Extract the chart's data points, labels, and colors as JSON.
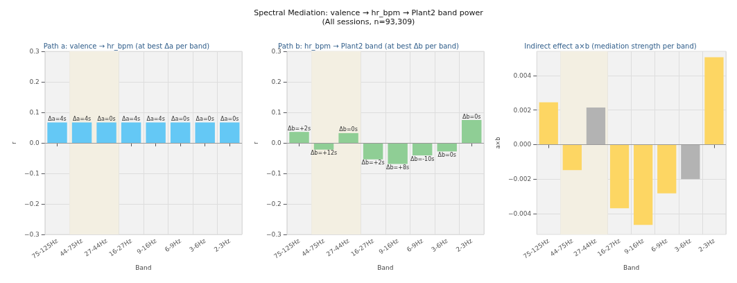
{
  "chart_data": [
    {
      "type": "other",
      "title": "Spectral Mediation: valence → hr_bpm → Plant2 band power",
      "subtitle": "(All sessions, n=93,309)"
    },
    {
      "type": "bar",
      "title": "Path a: valence → hr_bpm (at best Δa per band)",
      "xlabel": "Band",
      "ylabel": "r",
      "categories": [
        "75-125Hz",
        "44-75Hz",
        "27-44Hz",
        "16-27Hz",
        "9-16Hz",
        "6-9Hz",
        "3-6Hz",
        "2-3Hz"
      ],
      "values": [
        0.067,
        0.067,
        0.067,
        0.067,
        0.067,
        0.067,
        0.067,
        0.067
      ],
      "annotations": [
        {
          "text": "Δa=4s",
          "x": "75-125Hz",
          "y": 0.067
        },
        {
          "text": "Δa=4s",
          "x": "44-75Hz",
          "y": 0.067
        },
        {
          "text": "Δa=0s",
          "x": "27-44Hz",
          "y": 0.067
        },
        {
          "text": "Δa=4s",
          "x": "16-27Hz",
          "y": 0.067
        },
        {
          "text": "Δa=4s",
          "x": "9-16Hz",
          "y": 0.067
        },
        {
          "text": "Δa=0s",
          "x": "6-9Hz",
          "y": 0.067
        },
        {
          "text": "Δa=0s",
          "x": "3-6Hz",
          "y": 0.067
        },
        {
          "text": "Δa=0s",
          "x": "2-3Hz",
          "y": 0.067
        }
      ],
      "color": "#64c8f5",
      "ylim": [
        -0.3,
        0.3
      ],
      "yticks": [
        {
          "value": -0.3,
          "label": "−0.3"
        },
        {
          "value": -0.2,
          "label": "−0.2"
        },
        {
          "value": -0.1,
          "label": "−0.1"
        },
        {
          "value": 0,
          "label": "0.0"
        },
        0.1,
        0.2,
        0.3
      ],
      "bands": [
        {
          "axis": "x",
          "from": "44-75Hz",
          "to": "27-44Hz",
          "color": "#f3efe2"
        }
      ],
      "ref_lines": [
        {
          "axis": "y",
          "value": 0,
          "color": "#999999"
        }
      ],
      "grid": true
    },
    {
      "type": "bar",
      "title": "Path b: hr_bpm → Plant2 band (at best Δb per band)",
      "xlabel": "Band",
      "ylabel": "r",
      "categories": [
        "75-125Hz",
        "44-75Hz",
        "27-44Hz",
        "16-27Hz",
        "9-16Hz",
        "6-9Hz",
        "3-6Hz",
        "2-3Hz"
      ],
      "values": [
        0.036,
        -0.022,
        0.032,
        -0.054,
        -0.069,
        -0.041,
        -0.028,
        0.075
      ],
      "annotations": [
        {
          "text": "Δb=+2s",
          "x": "75-125Hz",
          "y": 0.036
        },
        {
          "text": "Δb=+12s",
          "x": "44-75Hz",
          "y": -0.022
        },
        {
          "text": "Δb=0s",
          "x": "27-44Hz",
          "y": 0.032
        },
        {
          "text": "Δb=+2s",
          "x": "16-27Hz",
          "y": -0.054
        },
        {
          "text": "Δb=+8s",
          "x": "9-16Hz",
          "y": -0.069
        },
        {
          "text": "Δb=-10s",
          "x": "6-9Hz",
          "y": -0.041
        },
        {
          "text": "Δb=0s",
          "x": "3-6Hz",
          "y": -0.028
        },
        {
          "text": "Δb=0s",
          "x": "2-3Hz",
          "y": 0.075
        }
      ],
      "color": "#8fce95",
      "ylim": [
        -0.3,
        0.3
      ],
      "yticks": [
        {
          "value": -0.3,
          "label": "−0.3"
        },
        {
          "value": -0.2,
          "label": "−0.2"
        },
        {
          "value": -0.1,
          "label": "−0.1"
        },
        {
          "value": 0,
          "label": "0.0"
        },
        0.1,
        0.2,
        0.3
      ],
      "bands": [
        {
          "axis": "x",
          "from": "44-75Hz",
          "to": "27-44Hz",
          "color": "#f3efe2"
        }
      ],
      "ref_lines": [
        {
          "axis": "y",
          "value": 0,
          "color": "#999999"
        }
      ],
      "grid": true
    },
    {
      "type": "bar",
      "title": "Indirect effect a×b (mediation strength per band)",
      "xlabel": "Band",
      "ylabel": "a×b",
      "categories": [
        "75-125Hz",
        "44-75Hz",
        "27-44Hz",
        "16-27Hz",
        "9-16Hz",
        "6-9Hz",
        "3-6Hz",
        "2-3Hz"
      ],
      "values": [
        0.00245,
        -0.00148,
        0.00215,
        -0.00368,
        -0.00465,
        -0.00282,
        -0.002,
        0.00506
      ],
      "colors": [
        "#fdd663",
        "#fdd663",
        "#b3b3b3",
        "#fdd663",
        "#fdd663",
        "#fdd663",
        "#b3b3b3",
        "#fdd663"
      ],
      "ylim": [
        -0.0052,
        0.0054
      ],
      "yticks": [
        {
          "value": -0.004,
          "label": "−0.004"
        },
        {
          "value": -0.002,
          "label": "−0.002"
        },
        {
          "value": 0,
          "label": "0.000"
        },
        0.002,
        0.004
      ],
      "bands": [
        {
          "axis": "x",
          "from": "44-75Hz",
          "to": "27-44Hz",
          "color": "#f3efe2"
        }
      ],
      "ref_lines": [
        {
          "axis": "y",
          "value": 0,
          "color": "#999999"
        }
      ],
      "grid": true
    }
  ]
}
